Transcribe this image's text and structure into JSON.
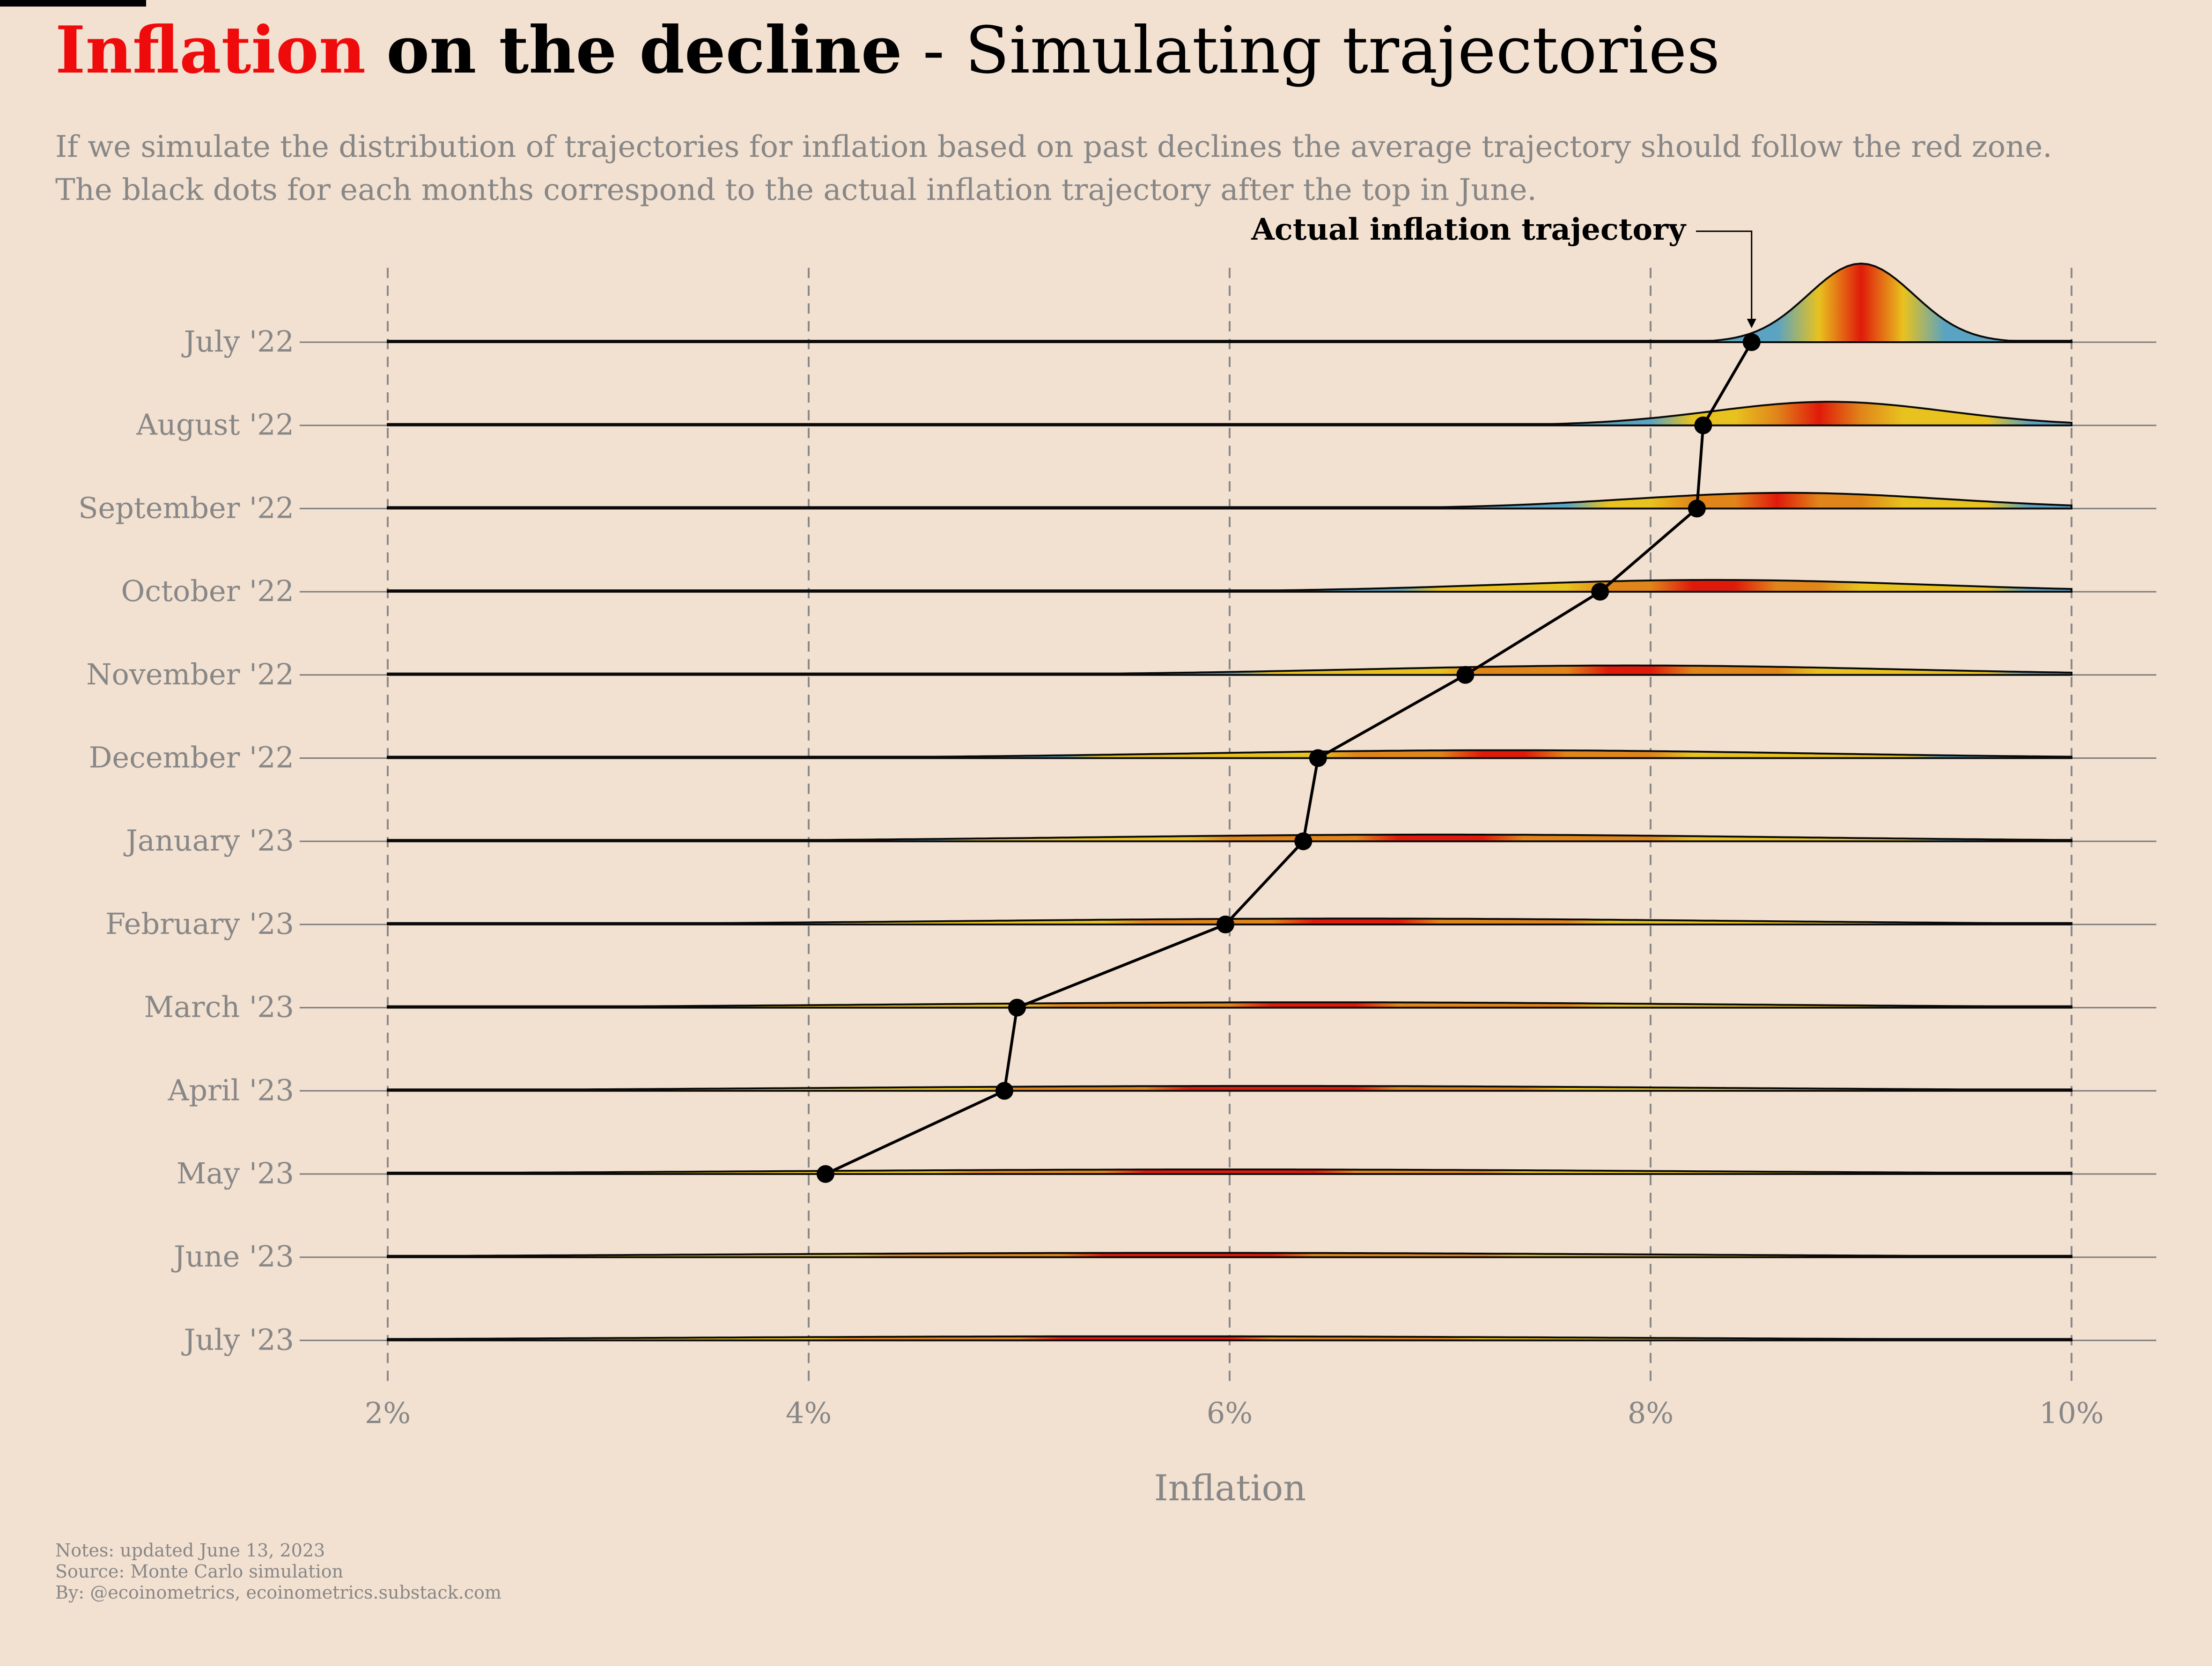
{
  "header": {
    "title_highlight": "Inflation",
    "title_bold": "on the decline",
    "title_rest": "- Simulating trajectories",
    "subtitle_lines": [
      "If we simulate the distribution of trajectories for inflation based on past declines the average trajectory should follow the red zone.",
      "The black dots for each months correspond to the actual inflation trajectory after the top in June."
    ]
  },
  "footer": {
    "notes": [
      "Notes: updated June 13, 2023",
      "Source: Monte Carlo simulation",
      "By: @ecoinometrics, ecoinometrics.substack.com"
    ]
  },
  "colors": {
    "background": "#f2e0d0",
    "title_highlight": "#ef0b0b",
    "muted_text": "#878787",
    "gradient_blue": "#5aa3c2",
    "gradient_yellow": "#e8c21f",
    "gradient_orange": "#e0851a",
    "gradient_red": "#e01a0a"
  },
  "chart_data": {
    "type": "ridgeline",
    "xlabel": "Inflation",
    "xlim": [
      2,
      10
    ],
    "x_ticks": [
      2,
      4,
      6,
      8,
      10
    ],
    "x_tick_labels": [
      "2%",
      "4%",
      "6%",
      "8%",
      "10%"
    ],
    "grid": "vertical dashed at x ticks",
    "annotation": {
      "text": "Actual inflation trajectory",
      "target_month": "July '22"
    },
    "months": [
      {
        "label": "July '22",
        "actual": 8.48,
        "peak": 9.0,
        "spread": 0.25,
        "height": 1.0
      },
      {
        "label": "August '22",
        "actual": 8.25,
        "peak": 8.85,
        "spread": 0.55,
        "height": 0.3
      },
      {
        "label": "September '22",
        "actual": 8.22,
        "peak": 8.65,
        "spread": 0.75,
        "height": 0.2
      },
      {
        "label": "October '22",
        "actual": 7.76,
        "peak": 8.3,
        "spread": 1.0,
        "height": 0.15
      },
      {
        "label": "November '22",
        "actual": 7.12,
        "peak": 7.9,
        "spread": 1.25,
        "height": 0.12
      },
      {
        "label": "December '22",
        "actual": 6.42,
        "peak": 7.3,
        "spread": 1.45,
        "height": 0.1
      },
      {
        "label": "January '23",
        "actual": 6.35,
        "peak": 7.0,
        "spread": 1.65,
        "height": 0.085
      },
      {
        "label": "February '23",
        "actual": 5.98,
        "peak": 6.6,
        "spread": 1.8,
        "height": 0.075
      },
      {
        "label": "March '23",
        "actual": 4.99,
        "peak": 6.4,
        "spread": 1.95,
        "height": 0.068
      },
      {
        "label": "April '23",
        "actual": 4.93,
        "peak": 6.2,
        "spread": 2.1,
        "height": 0.062
      },
      {
        "label": "May '23",
        "actual": 4.08,
        "peak": 6.0,
        "spread": 2.2,
        "height": 0.058
      },
      {
        "label": "June '23",
        "actual": null,
        "peak": 5.8,
        "spread": 2.3,
        "height": 0.055
      },
      {
        "label": "July '23",
        "actual": null,
        "peak": 5.6,
        "spread": 2.4,
        "height": 0.052
      }
    ]
  }
}
